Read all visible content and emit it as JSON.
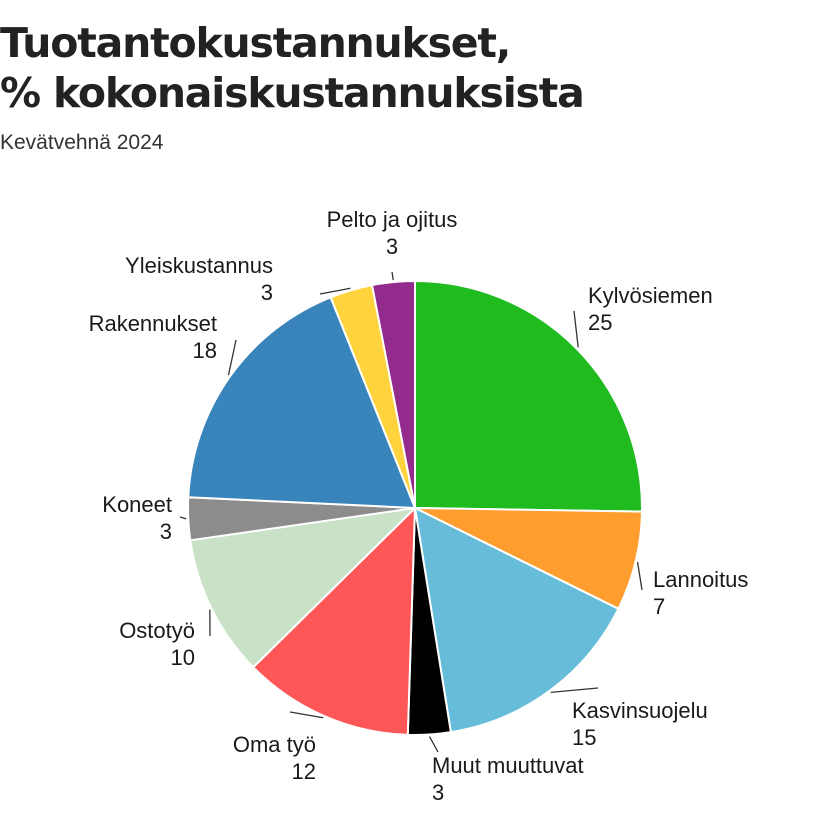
{
  "header": {
    "title_line1": "Tuotantokustannukset,",
    "title_line2": "% kokonaiskustannuksista",
    "subtitle": "Kevätvehnä 2024"
  },
  "chart_data": {
    "type": "pie",
    "title": "Tuotantokustannukset, % kokonaiskustannuksista",
    "subtitle": "Kevätvehnä 2024",
    "start_angle_deg": 0,
    "direction": "clockwise",
    "slices": [
      {
        "label": "Kylvösiemen",
        "value": 25,
        "color": "#1fbb1f"
      },
      {
        "label": "Lannoitus",
        "value": 7,
        "color": "#ff9d2e"
      },
      {
        "label": "Kasvinsuojelu",
        "value": 15,
        "color": "#66bcd9"
      },
      {
        "label": "Muut muuttuvat",
        "value": 3,
        "color": "#000000"
      },
      {
        "label": "Oma työ",
        "value": 12,
        "color": "#ff5757"
      },
      {
        "label": "Ostotyö",
        "value": 10,
        "color": "#c9e2c7"
      },
      {
        "label": "Koneet",
        "value": 3,
        "color": "#8c8c8c"
      },
      {
        "label": "Rakennukset",
        "value": 18,
        "color": "#3a84bc"
      },
      {
        "label": "Yleiskustannus",
        "value": 3,
        "color": "#ffd33d"
      },
      {
        "label": "Pelto ja ojitus",
        "value": 3,
        "color": "#932b8c"
      }
    ]
  }
}
